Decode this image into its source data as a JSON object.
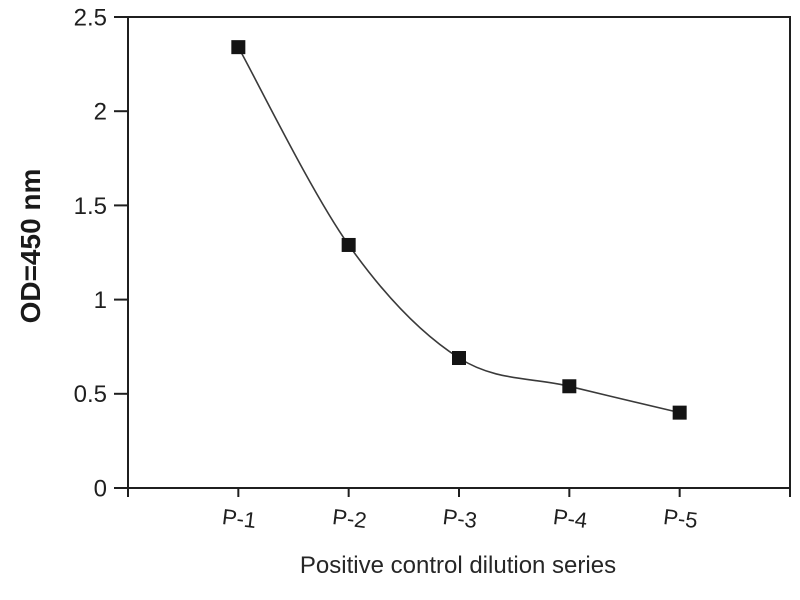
{
  "chart_data": {
    "type": "line",
    "title": "",
    "xlabel": "Positive control dilution series",
    "ylabel": "OD=450 nm",
    "categories": [
      "P-1",
      "P-2",
      "P-3",
      "P-4",
      "P-5"
    ],
    "values": [
      2.34,
      1.29,
      0.69,
      0.54,
      0.4
    ],
    "ylim": [
      0,
      2.5
    ],
    "yticks": {
      "values": [
        0,
        0.5,
        1,
        1.5,
        2,
        2.5
      ],
      "labels": [
        "0",
        "0.5",
        "1",
        "1.5",
        "2",
        "2.5"
      ]
    },
    "x_axis_intervals": 6,
    "grid": false,
    "legend": null,
    "line_smooth": true,
    "marker": "filled-square",
    "colors": {
      "line": "#3a3a3a",
      "marker": "#141414",
      "axis": "#1f1f1f",
      "text": "#1f1f1f",
      "plot_background": "#ffffff"
    }
  }
}
